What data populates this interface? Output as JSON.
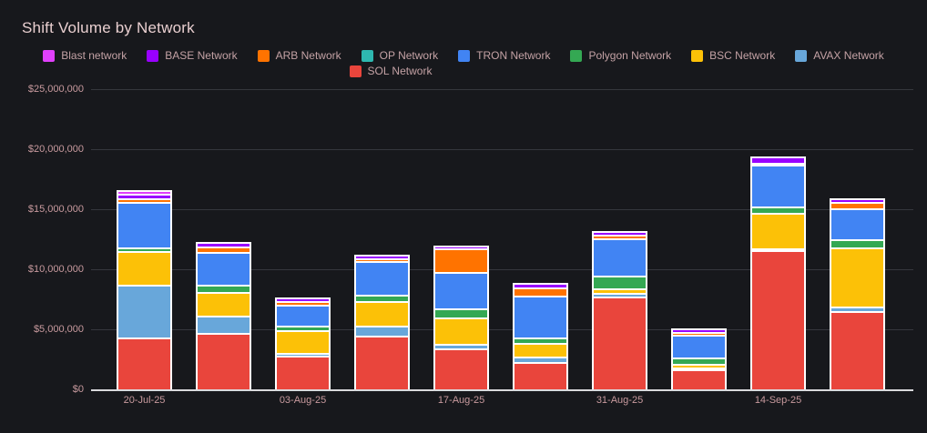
{
  "page": {
    "background": "#17181c"
  },
  "chart_data": {
    "type": "bar",
    "stacked": true,
    "title": "Shift Volume by Network",
    "title_color": "#e9cfd0",
    "axis_label_color": "#c89a9e",
    "legend_label_color": "#c4a2a5",
    "grid_color": "#35373d",
    "baseline_color": "#d9d9dc",
    "ylim": [
      0,
      25000000
    ],
    "y_axis": {
      "max": 25000000,
      "ticks": [
        {
          "label": "$25,000,000",
          "value": 25000000
        },
        {
          "label": "$20,000,000",
          "value": 20000000
        },
        {
          "label": "$15,000,000",
          "value": 15000000
        },
        {
          "label": "$10,000,000",
          "value": 10000000
        },
        {
          "label": "$5,000,000",
          "value": 5000000
        },
        {
          "label": "$0",
          "value": 0
        }
      ]
    },
    "x_tick_labels": [
      "20-Jul-25",
      "",
      "03-Aug-25",
      "",
      "17-Aug-25",
      "",
      "31-Aug-25",
      "",
      "14-Sep-25",
      ""
    ],
    "legend": [
      {
        "label": "Blast network",
        "color": "#e040fb"
      },
      {
        "label": "BASE Network",
        "color": "#9900ff"
      },
      {
        "label": "ARB Network",
        "color": "#ff7300"
      },
      {
        "label": "OP Network",
        "color": "#2eb8b0"
      },
      {
        "label": "TRON Network",
        "color": "#4184f3"
      },
      {
        "label": "Polygon Network",
        "color": "#34a853"
      },
      {
        "label": "BSC Network",
        "color": "#fcc107"
      },
      {
        "label": "AVAX Network",
        "color": "#68a7da"
      },
      {
        "label": "SOL Network",
        "color": "#e9453c"
      }
    ],
    "series": [
      {
        "name": "SOL Network",
        "color": "#e9453c",
        "values": [
          4300000,
          4700000,
          2800000,
          4450000,
          3400000,
          2300000,
          7750000,
          1700000,
          11600000,
          6500000
        ]
      },
      {
        "name": "AVAX Network",
        "color": "#68a7da",
        "values": [
          4550000,
          1600000,
          400000,
          1000000,
          550000,
          550000,
          450000,
          250000,
          100000,
          550000
        ]
      },
      {
        "name": "BSC Network",
        "color": "#fcc107",
        "values": [
          2950000,
          2100000,
          2050000,
          2200000,
          2350000,
          1350000,
          550000,
          450000,
          3100000,
          5100000
        ]
      },
      {
        "name": "Polygon Network",
        "color": "#34a853",
        "values": [
          450000,
          750000,
          500000,
          700000,
          900000,
          600000,
          1150000,
          650000,
          650000,
          800000
        ]
      },
      {
        "name": "TRON Network",
        "color": "#4184f3",
        "values": [
          4000000,
          2900000,
          1900000,
          2950000,
          3200000,
          3600000,
          3300000,
          2050000,
          3650000,
          2750000
        ]
      },
      {
        "name": "OP Network",
        "color": "#2eb8b0",
        "values": [
          0,
          0,
          0,
          0,
          0,
          0,
          0,
          0,
          0,
          0
        ]
      },
      {
        "name": "ARB Network",
        "color": "#ff7300",
        "values": [
          450000,
          600000,
          450000,
          400000,
          2100000,
          850000,
          450000,
          400000,
          300000,
          650000
        ]
      },
      {
        "name": "BASE Network",
        "color": "#9900ff",
        "values": [
          500000,
          550000,
          450000,
          400000,
          400000,
          550000,
          450000,
          450000,
          700000,
          450000
        ]
      },
      {
        "name": "Blast network",
        "color": "#e040fb",
        "values": [
          450000,
          0,
          0,
          0,
          0,
          0,
          0,
          0,
          0,
          0
        ]
      }
    ]
  }
}
